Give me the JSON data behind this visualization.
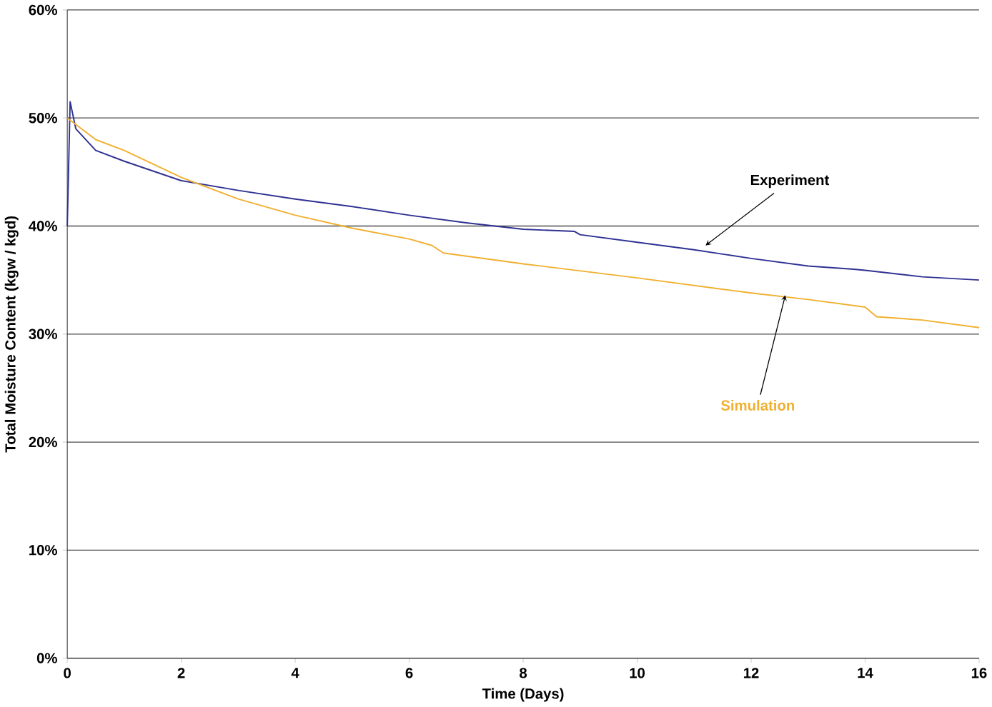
{
  "chart_data": {
    "type": "line",
    "xlabel": "Time (Days)",
    "ylabel": "Total Moisture Content (kgw / kgd)",
    "xlim": [
      0,
      16
    ],
    "xticks": [
      0,
      2,
      4,
      6,
      8,
      10,
      12,
      14,
      16
    ],
    "ylim": [
      0,
      60
    ],
    "yticks": [
      {
        "value": 0,
        "label": "0%"
      },
      {
        "value": 10,
        "label": "10%"
      },
      {
        "value": 20,
        "label": "20%"
      },
      {
        "value": 30,
        "label": "30%"
      },
      {
        "value": 40,
        "label": "40%"
      },
      {
        "value": 50,
        "label": "50%"
      },
      {
        "value": 60,
        "label": "60%"
      }
    ],
    "grid": "y",
    "marker": "none",
    "line_style": "solid",
    "series": [
      {
        "color": "#2e3192",
        "x": [
          0,
          0.05,
          0.15,
          0.5,
          1,
          2,
          3,
          4,
          5,
          6,
          7,
          8,
          8.9,
          9,
          10,
          11,
          12,
          13,
          13.8,
          14,
          15,
          16
        ],
        "values": [
          40,
          51.5,
          49,
          47,
          46,
          44.2,
          43.3,
          42.5,
          41.8,
          41,
          40.3,
          39.7,
          39.5,
          39.2,
          38.5,
          37.8,
          37,
          36.3,
          36,
          35.9,
          35.3,
          35
        ]
      },
      {
        "color": "#f0b030",
        "x": [
          0,
          0.5,
          1,
          2,
          3,
          4,
          5,
          6,
          6.4,
          6.6,
          8,
          10,
          12,
          13,
          14,
          14.2,
          15,
          16
        ],
        "values": [
          50,
          48,
          47,
          44.5,
          42.5,
          41,
          39.8,
          38.8,
          38.2,
          37.5,
          36.5,
          35.2,
          33.8,
          33.2,
          32.5,
          31.6,
          31.3,
          30.6
        ]
      }
    ],
    "annotations": [
      {
        "text": "Experiment",
        "x": 11.2,
        "y": 38.2
      },
      {
        "text": "Simulation",
        "x": 12.6,
        "y": 33.6
      }
    ]
  }
}
